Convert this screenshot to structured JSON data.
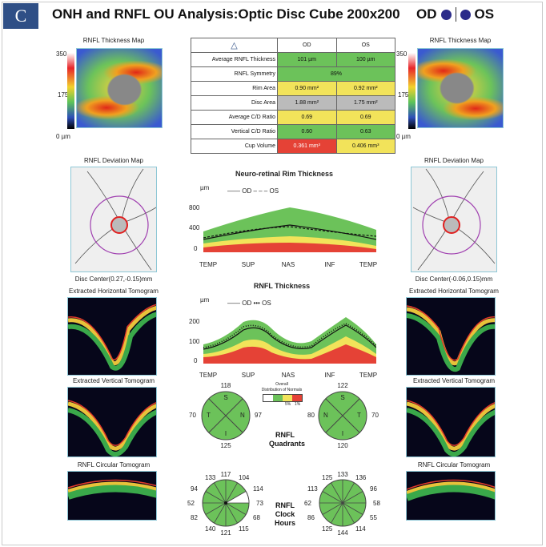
{
  "panel_letter": "C",
  "header": {
    "title": "ONH and RNFL OU Analysis:Optic Disc Cube 200x200",
    "od": "OD",
    "os": "OS"
  },
  "thickness_map": {
    "title": "RNFL Thickness Map",
    "scale_top": "350",
    "scale_mid": "175",
    "scale_bottom": "0 µm"
  },
  "table": {
    "col_od": "OD",
    "col_os": "OS",
    "rows": [
      {
        "label": "Average RNFL Thickness",
        "od": "101 µm",
        "os": "100 µm"
      },
      {
        "label": "RNFL Symmetry",
        "both": "89%"
      },
      {
        "label": "Rim Area",
        "od": "0.90 mm²",
        "os": "0.92 mm²"
      },
      {
        "label": "Disc Area",
        "od": "1.88 mm²",
        "os": "1.75 mm²"
      },
      {
        "label": "Average C/D Ratio",
        "od": "0.69",
        "os": "0.69"
      },
      {
        "label": "Vertical C/D Ratio",
        "od": "0.60",
        "os": "0.63"
      },
      {
        "label": "Cup Volume",
        "od": "0.361 mm³",
        "os": "0.406 mm³"
      }
    ]
  },
  "deviation_map": {
    "title": "RNFL Deviation Map",
    "od_center": "Disc Center(0.27,-0.15)mm",
    "os_center": "Disc Center(-0.06,0.15)mm"
  },
  "tomograms": {
    "horizontal": "Extracted Horizontal Tomogram",
    "vertical": "Extracted Vertical Tomogram",
    "circular": "RNFL Circular Tomogram"
  },
  "rim_chart": {
    "title": "Neuro-retinal Rim Thickness",
    "unit": "µm",
    "legend_od": "OD",
    "legend_os": "OS",
    "y_ticks": [
      "800",
      "400",
      "0"
    ],
    "x_ticks": [
      "TEMP",
      "SUP",
      "NAS",
      "INF",
      "TEMP"
    ]
  },
  "rnfl_chart": {
    "title": "RNFL Thickness",
    "unit": "µm",
    "legend_od": "OD",
    "legend_os": "OS",
    "y_ticks": [
      "200",
      "100",
      "0"
    ],
    "x_ticks": [
      "TEMP",
      "SUP",
      "NAS",
      "INF",
      "TEMP"
    ]
  },
  "distribution_legend": {
    "title_line1": "Distribution of Normals",
    "title_line2": "Overall",
    "pcts": [
      "5%",
      "1%"
    ]
  },
  "quadrants": {
    "title_line1": "RNFL",
    "title_line2": "Quadrants",
    "od": {
      "top": "118",
      "bottom": "125",
      "left": "70",
      "right": "97"
    },
    "os": {
      "top": "122",
      "bottom": "120",
      "left": "80",
      "right": "70"
    },
    "letters": [
      "S",
      "N",
      "I",
      "T"
    ]
  },
  "clock_hours": {
    "title_line1": "RNFL",
    "title_line2": "Clock",
    "title_line3": "Hours",
    "od": [
      "117",
      "104",
      "114",
      "73",
      "68",
      "115",
      "121",
      "140",
      "82",
      "52",
      "94",
      "133"
    ],
    "os": [
      "133",
      "136",
      "96",
      "58",
      "55",
      "114",
      "144",
      "125",
      "86",
      "62",
      "113",
      "125"
    ]
  },
  "colors": {
    "accent": "#2f4f86",
    "normal": "#6cc25a",
    "borderline": "#f2e35a",
    "outside": "#e54236",
    "frame": "#8ec7d6"
  }
}
